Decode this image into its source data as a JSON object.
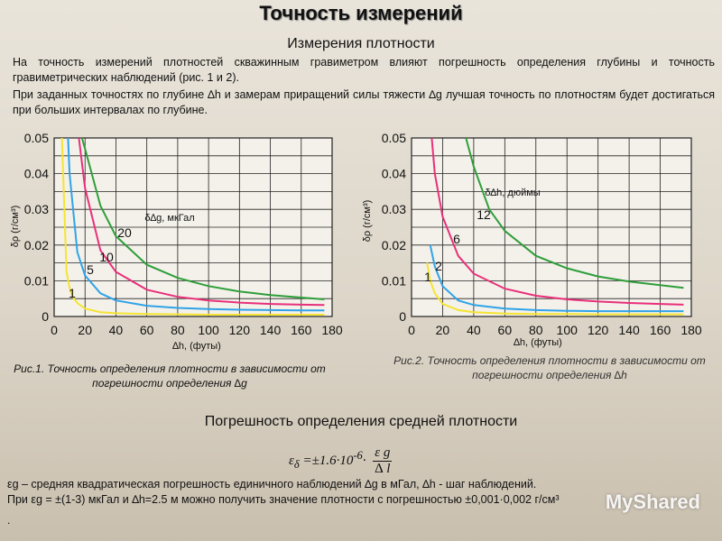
{
  "header": {
    "title": "Точность измерений",
    "subtitle": "Измерения плотности"
  },
  "intro": {
    "p1": "На точность измерений плотностей скважинным гравиметром влияют погрешность определения глубины и точность гравиметрических наблюдений (рис. 1 и 2).",
    "p2": "При заданных точностях по глубине ∆h и замерам приращений силы тяжести ∆g лучшая точность по плотностям будет достигаться при больших интервалах по глубине."
  },
  "chart_data": [
    {
      "type": "line",
      "ylabel": "δρ (г/см³)",
      "xlabel": "∆h, (футы)",
      "legend_title": "δ∆g, мкГал",
      "x_ticks": [
        "0",
        "20",
        "40",
        "60",
        "80",
        "100",
        "120",
        "140",
        "160",
        "180"
      ],
      "y_ticks": [
        "0",
        "0.01",
        "0.02",
        "0.03",
        "0.04",
        "0.05"
      ],
      "xlim": [
        0,
        180
      ],
      "ylim": [
        0,
        0.05
      ],
      "grid": true,
      "series": [
        {
          "name": "1",
          "color": "#f5e431",
          "x": [
            5,
            8,
            10,
            12,
            15,
            20,
            30,
            40,
            60,
            80,
            100,
            120,
            140,
            160,
            175
          ],
          "y": [
            0.05,
            0.0125,
            0.008,
            0.0055,
            0.0038,
            0.0022,
            0.0012,
            0.0009,
            0.0007,
            0.0006,
            0.0005,
            0.0005,
            0.0005,
            0.0005,
            0.0005
          ]
        },
        {
          "name": "5",
          "color": "#2fa3e8",
          "x": [
            9,
            10,
            15,
            20,
            30,
            40,
            60,
            80,
            100,
            120,
            140,
            160,
            175
          ],
          "y": [
            0.05,
            0.04,
            0.018,
            0.0115,
            0.0065,
            0.0045,
            0.003,
            0.0024,
            0.0021,
            0.0019,
            0.0018,
            0.0017,
            0.0017
          ]
        },
        {
          "name": "10",
          "color": "#e8307a",
          "x": [
            16,
            20,
            30,
            40,
            60,
            80,
            100,
            120,
            140,
            160,
            175
          ],
          "y": [
            0.05,
            0.036,
            0.0185,
            0.0125,
            0.0075,
            0.0055,
            0.0045,
            0.0039,
            0.0035,
            0.0033,
            0.0032
          ]
        },
        {
          "name": "20",
          "color": "#2e9e3a",
          "x": [
            18,
            20,
            30,
            40,
            60,
            80,
            100,
            120,
            140,
            160,
            175
          ],
          "y": [
            0.05,
            0.047,
            0.031,
            0.0225,
            0.0145,
            0.0108,
            0.0085,
            0.007,
            0.006,
            0.0053,
            0.0048
          ]
        }
      ]
    },
    {
      "type": "line",
      "ylabel": "δρ (г/см³)",
      "xlabel": "∆h, (футы)",
      "legend_title": "δ∆h, дюймы",
      "x_ticks": [
        "0",
        "20",
        "40",
        "60",
        "80",
        "100",
        "120",
        "140",
        "160",
        "180"
      ],
      "y_ticks": [
        "0",
        "0.01",
        "0.02",
        "0.03",
        "0.04",
        "0.05"
      ],
      "xlim": [
        0,
        180
      ],
      "ylim": [
        0,
        0.05
      ],
      "grid": true,
      "series": [
        {
          "name": "1",
          "color": "#f5e431",
          "x": [
            10,
            12,
            15,
            20,
            30,
            40,
            60,
            80,
            100,
            120,
            140,
            160,
            175
          ],
          "y": [
            0.015,
            0.01,
            0.0065,
            0.0035,
            0.0018,
            0.0012,
            0.0008,
            0.0007,
            0.0007,
            0.0006,
            0.0006,
            0.0006,
            0.0006
          ]
        },
        {
          "name": "2",
          "color": "#2fa3e8",
          "x": [
            12,
            15,
            20,
            30,
            40,
            60,
            80,
            100,
            120,
            140,
            160,
            175
          ],
          "y": [
            0.02,
            0.014,
            0.0085,
            0.0045,
            0.0032,
            0.0022,
            0.0018,
            0.0016,
            0.0015,
            0.0015,
            0.0015,
            0.0015
          ]
        },
        {
          "name": "6",
          "color": "#e8307a",
          "x": [
            13,
            15,
            20,
            30,
            40,
            60,
            80,
            100,
            120,
            140,
            160,
            175
          ],
          "y": [
            0.05,
            0.04,
            0.028,
            0.017,
            0.012,
            0.0078,
            0.0058,
            0.0048,
            0.0042,
            0.0038,
            0.0035,
            0.0033
          ]
        },
        {
          "name": "12",
          "color": "#2e9e3a",
          "x": [
            35,
            40,
            50,
            60,
            80,
            100,
            120,
            140,
            160,
            175
          ],
          "y": [
            0.05,
            0.042,
            0.03,
            0.024,
            0.017,
            0.0135,
            0.0112,
            0.0098,
            0.0088,
            0.008
          ]
        }
      ]
    }
  ],
  "captions": {
    "fig1": "Рис.1. Точность определения плотности в зависимости от погрешности определения ∆g",
    "fig2": "Рис.2. Точность определения плотности в зависимости от погрешности определения ∆h"
  },
  "section2": {
    "title": "Погрешность определения средней плотности",
    "formula": {
      "lhs": "ε",
      "lhs_sub": "δ",
      "coef": "=±1.6·10",
      "exp": "-6",
      "num": "ε g",
      "den": "∆ l"
    },
    "p3": "εg – средняя квадратическая погрешность единичного наблюдений ∆g в мГал, ∆h - шаг наблюдений.",
    "p4": "При εg = ±(1-3) мкГал и ∆h=2.5 м можно получить значение плотности с погрешностью ±0,001·0,002 г/см³",
    "dot": ".",
    "watermark": "MyShared"
  }
}
